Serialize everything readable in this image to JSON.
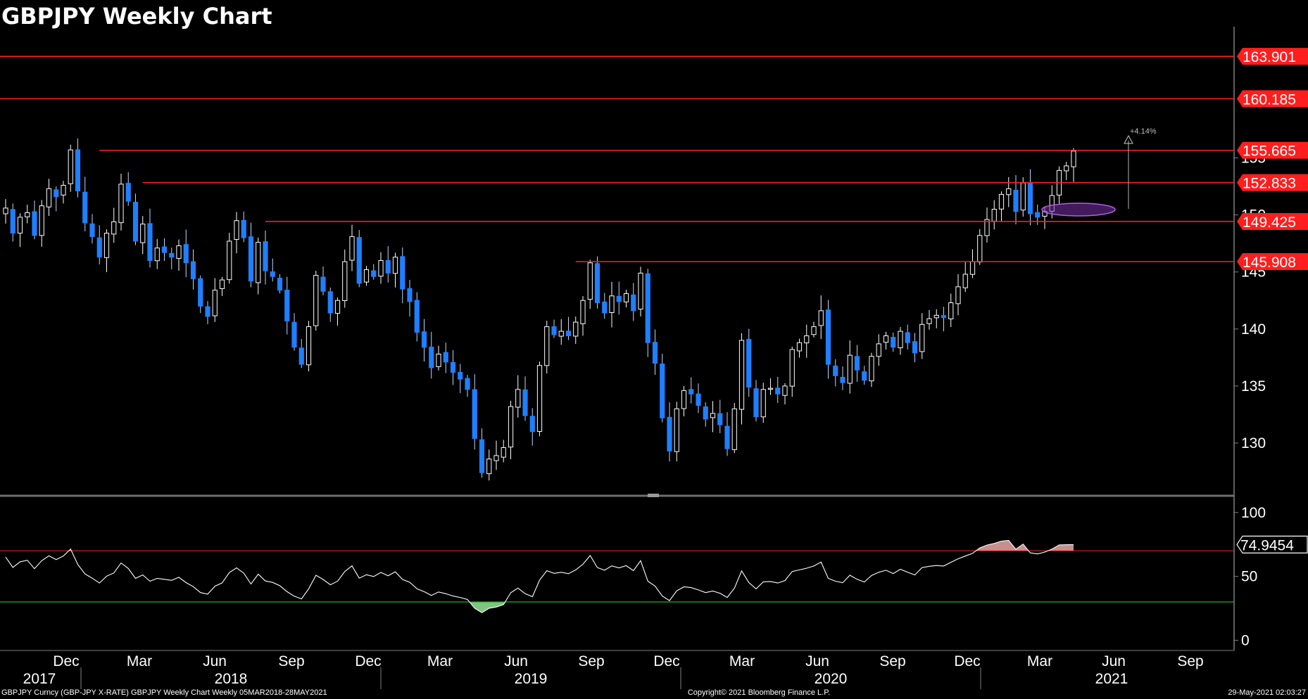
{
  "chart_data": {
    "type": "candlestick",
    "title": "GBPJPY Weekly Chart",
    "price_panel": {
      "yticks": [
        130,
        135,
        140,
        145,
        150,
        155
      ],
      "ylim": [
        125.5,
        166.5
      ],
      "horizontal_levels": [
        {
          "value": 163.901,
          "label": "163.901"
        },
        {
          "value": 160.185,
          "label": "160.185"
        },
        {
          "value": 155.665,
          "label": "155.665"
        },
        {
          "value": 152.833,
          "label": "152.833"
        },
        {
          "value": 149.425,
          "label": "149.425"
        },
        {
          "value": 145.908,
          "label": "145.908"
        }
      ],
      "annotation": {
        "text": "+4.14%"
      },
      "closes": [
        150.6,
        148.4,
        149.8,
        150.2,
        148.2,
        150.8,
        152.3,
        151.6,
        152.6,
        155.7,
        152.1,
        149.3,
        148.1,
        146.3,
        148.4,
        149.4,
        152.7,
        151.2,
        147.7,
        149.2,
        146.0,
        147.1,
        146.7,
        146.3,
        147.3,
        145.8,
        144.4,
        142.0,
        141.1,
        143.4,
        144.3,
        147.7,
        149.5,
        148.0,
        144.2,
        147.6,
        145.1,
        144.6,
        143.4,
        140.7,
        138.4,
        136.9,
        140.2,
        144.7,
        143.3,
        141.4,
        142.5,
        145.9,
        148.1,
        144.0,
        145.2,
        144.6,
        146.0,
        144.9,
        146.3,
        143.5,
        142.4,
        139.7,
        138.4,
        136.6,
        137.8,
        137.1,
        136.2,
        135.6,
        134.7,
        130.4,
        127.4,
        128.6,
        128.9,
        129.6,
        133.2,
        134.7,
        132.4,
        131.0,
        136.8,
        140.2,
        139.5,
        139.8,
        139.4,
        140.6,
        142.5,
        145.8,
        142.3,
        141.4,
        142.9,
        142.4,
        143.1,
        141.6,
        144.9,
        138.8,
        137.0,
        132.2,
        129.3,
        133.0,
        134.6,
        134.3,
        133.3,
        132.1,
        132.6,
        131.6,
        129.5,
        133.0,
        139.0,
        134.9,
        132.3,
        134.7,
        134.8,
        134.3,
        135.0,
        138.2,
        138.8,
        139.4,
        140.2,
        141.6,
        136.9,
        135.9,
        135.3,
        137.7,
        136.4,
        135.5,
        137.6,
        138.7,
        139.4,
        138.4,
        139.8,
        138.8,
        137.9,
        140.4,
        140.9,
        141.2,
        141.0,
        142.3,
        143.7,
        144.8,
        145.9,
        148.2,
        149.6,
        150.5,
        151.8,
        152.3,
        150.3,
        152.8,
        150.1,
        149.8,
        150.3,
        151.7,
        153.9,
        154.3,
        155.6
      ]
    },
    "x_axis": {
      "month_labels": [
        "Dec",
        "Mar",
        "Jun",
        "Sep",
        "Dec",
        "Mar",
        "Jun",
        "Sep",
        "Dec",
        "Mar",
        "Jun",
        "Sep",
        "Dec",
        "Mar",
        "Jun",
        "Sep"
      ],
      "year_labels": [
        "2017",
        "2018",
        "2019",
        "2020",
        "2021"
      ]
    },
    "indicator_panel": {
      "yticks": [
        0,
        50,
        100
      ],
      "ylim": [
        -8,
        112
      ],
      "upper_level": 70,
      "lower_level": 30,
      "last_value_label": "74.9454",
      "values": [
        65.1,
        57.0,
        61.4,
        62.6,
        56.0,
        62.3,
        66.1,
        63.2,
        65.9,
        71.4,
        59.3,
        51.9,
        48.6,
        44.8,
        50.2,
        52.7,
        60.5,
        56.2,
        48.4,
        51.2,
        46.2,
        48.5,
        47.7,
        46.9,
        49.3,
        45.1,
        42.0,
        37.3,
        36.1,
        42.3,
        44.9,
        53.0,
        56.7,
        52.5,
        44.1,
        51.7,
        46.4,
        45.3,
        42.7,
        38.0,
        34.5,
        32.4,
        40.3,
        50.9,
        47.6,
        43.4,
        46.2,
        53.8,
        58.2,
        48.6,
        51.3,
        49.9,
        53.1,
        50.5,
        53.6,
        47.6,
        45.4,
        40.3,
        38.0,
        35.1,
        37.8,
        36.4,
        34.6,
        33.5,
        31.9,
        25.0,
        21.6,
        25.1,
        26.0,
        27.9,
        37.2,
        40.8,
        36.4,
        34.1,
        47.1,
        54.5,
        52.4,
        53.2,
        52.1,
        55.1,
        59.5,
        66.3,
        56.9,
        54.8,
        58.2,
        56.7,
        58.4,
        54.5,
        62.3,
        46.2,
        42.4,
        34.6,
        31.0,
        38.7,
        41.8,
        41.2,
        39.4,
        37.3,
        38.5,
        36.8,
        33.5,
        40.8,
        54.3,
        45.1,
        40.2,
        45.7,
        46.0,
        44.8,
        46.7,
        53.8,
        55.1,
        56.4,
        58.1,
        61.2,
        48.4,
        46.2,
        45.0,
        50.9,
        47.7,
        45.6,
        50.7,
        53.2,
        54.8,
        52.2,
        55.6,
        53.2,
        51.1,
        56.9,
        57.9,
        58.5,
        58.1,
        61.0,
        63.8,
        65.9,
        68.0,
        72.3,
        74.5,
        75.8,
        77.6,
        78.2,
        71.2,
        75.3,
        68.4,
        67.6,
        69.0,
        71.4,
        74.6,
        74.8,
        74.9
      ]
    },
    "footer": {
      "left": "GBPJPY Curncy (GBP-JPY X-RATE) GBPJPY Weekly Chart  Weekly 05MAR2018-28MAY2021",
      "center": "Copyright© 2021 Bloomberg Finance L.P.",
      "right": "29-May-2021 02:03:27"
    },
    "colors": {
      "background": "#000000",
      "up_candle": "#ffffff",
      "down_candle": "#1f7fff",
      "level_line": "#ff1e1e",
      "upper_line": "#e02020",
      "lower_line": "#20b020",
      "indicator_line": "#ffffff",
      "overbought_fill": "#c98e8e",
      "oversold_fill": "#7fc47f",
      "highlight_ellipse": "#a040d0",
      "axis": "#7f7f7f"
    }
  }
}
